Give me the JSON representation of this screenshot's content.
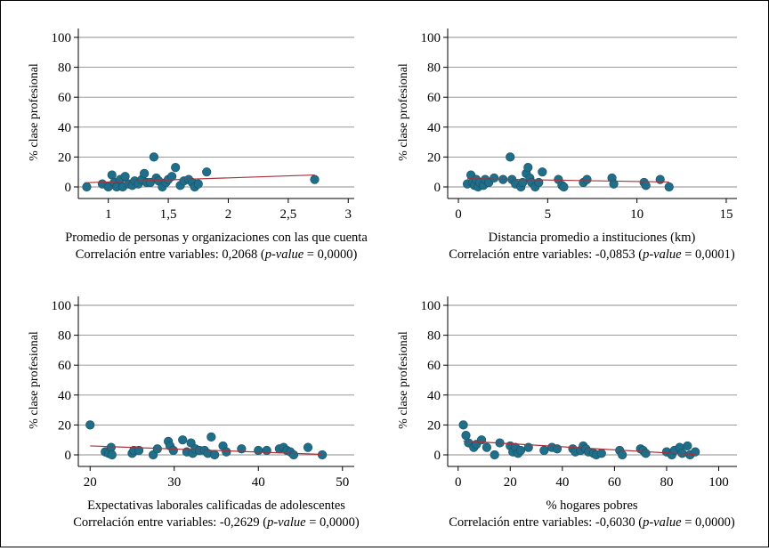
{
  "chart_data": [
    {
      "type": "scatter",
      "ylabel": "% clase profesional",
      "xlabel": "Promedio de personas y organizaciones con las que cuenta",
      "correlation": {
        "prefix": "Correlación entre variables: 0,2068 (",
        "p_label": "p-value",
        "suffix": " = 0,0000)"
      },
      "xlim": [
        0.75,
        3.05
      ],
      "ylim": [
        0,
        100
      ],
      "xticks": [
        1,
        1.5,
        2,
        2.5,
        3
      ],
      "xticklabels": [
        "1",
        "1,5",
        "2",
        "2,5",
        "3"
      ],
      "yticks": [
        0,
        20,
        40,
        60,
        80,
        100
      ],
      "yticklabels": [
        "0",
        "20",
        "40",
        "60",
        "80",
        "100"
      ],
      "fit": {
        "x": [
          0.8,
          2.72
        ],
        "y": [
          2.8,
          8.0
        ]
      },
      "points": [
        [
          0.82,
          0
        ],
        [
          0.95,
          2
        ],
        [
          1.0,
          0
        ],
        [
          1.03,
          8
        ],
        [
          1.05,
          3
        ],
        [
          1.07,
          0
        ],
        [
          1.1,
          5
        ],
        [
          1.12,
          0
        ],
        [
          1.14,
          7
        ],
        [
          1.17,
          2
        ],
        [
          1.2,
          1
        ],
        [
          1.22,
          4
        ],
        [
          1.25,
          2
        ],
        [
          1.28,
          5
        ],
        [
          1.3,
          9
        ],
        [
          1.32,
          3
        ],
        [
          1.35,
          3
        ],
        [
          1.38,
          20
        ],
        [
          1.4,
          6
        ],
        [
          1.42,
          4
        ],
        [
          1.45,
          0
        ],
        [
          1.48,
          3
        ],
        [
          1.5,
          5
        ],
        [
          1.53,
          7
        ],
        [
          1.56,
          13
        ],
        [
          1.6,
          1
        ],
        [
          1.63,
          4
        ],
        [
          1.67,
          5
        ],
        [
          1.7,
          3
        ],
        [
          1.72,
          0
        ],
        [
          1.75,
          2
        ],
        [
          1.82,
          10
        ],
        [
          2.72,
          5
        ]
      ]
    },
    {
      "type": "scatter",
      "ylabel": "% clase profesional",
      "xlabel": "Distancia promedio a instituciones (km)",
      "correlation": {
        "prefix": "Correlación entre variables: -0,0853 (",
        "p_label": "p-value",
        "suffix": " = 0,0001)"
      },
      "xlim": [
        -0.6,
        15.6
      ],
      "ylim": [
        0,
        100
      ],
      "xticks": [
        0,
        5,
        10,
        15
      ],
      "xticklabels": [
        "0",
        "5",
        "10",
        "15"
      ],
      "yticks": [
        0,
        20,
        40,
        60,
        80,
        100
      ],
      "yticklabels": [
        "0",
        "20",
        "40",
        "60",
        "80",
        "100"
      ],
      "fit": {
        "x": [
          0.5,
          11.8
        ],
        "y": [
          5.5,
          3.3
        ]
      },
      "points": [
        [
          0.5,
          2
        ],
        [
          0.7,
          8
        ],
        [
          0.8,
          3
        ],
        [
          0.9,
          1
        ],
        [
          1.0,
          5
        ],
        [
          1.1,
          0
        ],
        [
          1.2,
          3
        ],
        [
          1.4,
          1
        ],
        [
          1.5,
          5
        ],
        [
          1.7,
          3
        ],
        [
          2.0,
          6
        ],
        [
          2.5,
          5
        ],
        [
          2.9,
          20
        ],
        [
          3.0,
          5
        ],
        [
          3.2,
          2
        ],
        [
          3.5,
          0
        ],
        [
          3.6,
          3
        ],
        [
          3.8,
          9
        ],
        [
          3.9,
          13
        ],
        [
          4.0,
          6
        ],
        [
          4.1,
          3
        ],
        [
          4.3,
          0
        ],
        [
          4.5,
          3
        ],
        [
          4.7,
          10
        ],
        [
          5.6,
          5
        ],
        [
          5.8,
          1
        ],
        [
          5.9,
          0
        ],
        [
          7.0,
          3
        ],
        [
          7.2,
          5
        ],
        [
          8.6,
          6
        ],
        [
          8.7,
          2
        ],
        [
          10.4,
          3
        ],
        [
          10.5,
          1
        ],
        [
          11.3,
          5
        ],
        [
          11.8,
          0
        ]
      ]
    },
    {
      "type": "scatter",
      "ylabel": "% clase profesional",
      "xlabel": "Expectativas laborales calificadas de adolescentes",
      "correlation": {
        "prefix": "Correlación entre variables: -0,2629 (",
        "p_label": "p-value",
        "suffix": " = 0,0000)"
      },
      "xlim": [
        18.6,
        51.4
      ],
      "ylim": [
        0,
        100
      ],
      "xticks": [
        20,
        30,
        40,
        50
      ],
      "xticklabels": [
        "20",
        "30",
        "40",
        "50"
      ],
      "yticks": [
        0,
        20,
        40,
        60,
        80,
        100
      ],
      "yticklabels": [
        "0",
        "20",
        "40",
        "60",
        "80",
        "100"
      ],
      "fit": {
        "x": [
          20,
          47.6
        ],
        "y": [
          6,
          0.3
        ]
      },
      "points": [
        [
          20,
          20
        ],
        [
          21.8,
          2
        ],
        [
          22.2,
          1
        ],
        [
          22.5,
          5
        ],
        [
          22.6,
          0
        ],
        [
          25.0,
          1
        ],
        [
          25.2,
          3
        ],
        [
          25.8,
          3
        ],
        [
          27.5,
          0
        ],
        [
          28.0,
          4
        ],
        [
          29.3,
          9
        ],
        [
          29.5,
          6
        ],
        [
          29.9,
          3
        ],
        [
          31.0,
          10
        ],
        [
          31.5,
          2
        ],
        [
          32.0,
          8
        ],
        [
          32.2,
          1
        ],
        [
          32.5,
          4
        ],
        [
          33.0,
          3
        ],
        [
          33.6,
          3
        ],
        [
          34.0,
          1
        ],
        [
          34.4,
          12
        ],
        [
          34.8,
          0
        ],
        [
          35.8,
          6
        ],
        [
          36.2,
          2
        ],
        [
          38.0,
          4
        ],
        [
          40.0,
          3
        ],
        [
          41.0,
          3
        ],
        [
          42.5,
          4
        ],
        [
          43.0,
          5
        ],
        [
          43.4,
          3
        ],
        [
          43.8,
          2
        ],
        [
          44.2,
          0
        ],
        [
          45.9,
          5
        ],
        [
          47.6,
          0
        ]
      ]
    },
    {
      "type": "scatter",
      "ylabel": "% clase profesional",
      "xlabel": "% hogares pobres",
      "correlation": {
        "prefix": "Correlación entre variables: -0,6030 (",
        "p_label": "p-value",
        "suffix": " = 0,0000)"
      },
      "xlim": [
        -4,
        107
      ],
      "ylim": [
        0,
        100
      ],
      "xticks": [
        0,
        20,
        40,
        60,
        80,
        100
      ],
      "xticklabels": [
        "0",
        "20",
        "40",
        "60",
        "80",
        "100"
      ],
      "yticks": [
        0,
        20,
        40,
        60,
        80,
        100
      ],
      "yticklabels": [
        "0",
        "20",
        "40",
        "60",
        "80",
        "100"
      ],
      "fit": {
        "x": [
          2,
          91
        ],
        "y": [
          9.3,
          0.2
        ]
      },
      "points": [
        [
          2,
          20
        ],
        [
          3,
          13
        ],
        [
          4,
          8
        ],
        [
          6,
          5
        ],
        [
          7,
          7
        ],
        [
          9,
          10
        ],
        [
          11,
          5
        ],
        [
          14,
          0
        ],
        [
          16,
          8
        ],
        [
          20,
          6
        ],
        [
          21,
          2
        ],
        [
          22,
          5
        ],
        [
          23,
          1
        ],
        [
          24,
          3
        ],
        [
          27,
          5
        ],
        [
          33,
          3
        ],
        [
          36,
          5
        ],
        [
          38,
          4
        ],
        [
          44,
          4
        ],
        [
          45,
          2
        ],
        [
          47,
          3
        ],
        [
          48,
          6
        ],
        [
          49,
          4
        ],
        [
          50,
          2
        ],
        [
          52,
          1
        ],
        [
          53,
          0
        ],
        [
          55,
          1
        ],
        [
          62,
          3
        ],
        [
          63,
          0
        ],
        [
          70,
          4
        ],
        [
          71,
          3
        ],
        [
          72,
          1
        ],
        [
          80,
          2
        ],
        [
          82,
          0
        ],
        [
          83,
          3
        ],
        [
          85,
          5
        ],
        [
          86,
          1
        ],
        [
          88,
          6
        ],
        [
          89,
          0
        ],
        [
          91,
          2
        ]
      ]
    }
  ]
}
